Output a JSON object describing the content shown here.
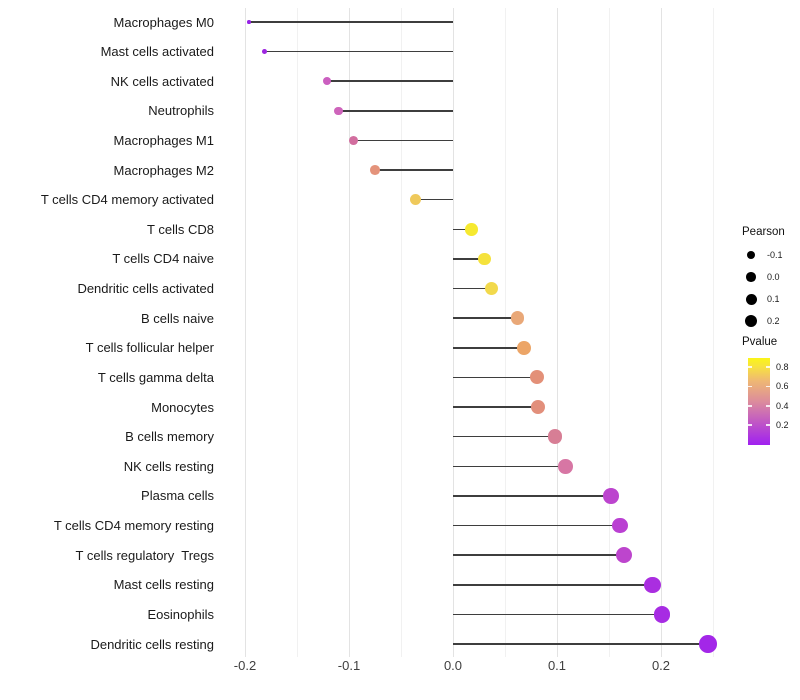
{
  "chart_data": {
    "type": "lollipop",
    "title": "",
    "xlabel": "",
    "ylabel": "",
    "x_ticks": [
      "-0.2",
      "-0.1",
      "0.0",
      "0.1",
      "0.2"
    ],
    "x_tick_values": [
      -0.2,
      -0.1,
      0.0,
      0.1,
      0.2
    ],
    "x_minor_tick_values": [
      -0.15,
      -0.05,
      0.05,
      0.15,
      0.25
    ],
    "xlim": [
      -0.22,
      0.2625
    ],
    "grid": "on",
    "stem_color": "#3e3e3e",
    "points": [
      {
        "label": "Macrophages M0",
        "pearson": -0.196,
        "pvalue": 0.06,
        "color": "#9623E6"
      },
      {
        "label": "Mast cells activated",
        "pearson": -0.181,
        "pvalue": 0.08,
        "color": "#9D26E0"
      },
      {
        "label": "NK cells activated",
        "pearson": -0.121,
        "pvalue": 0.33,
        "color": "#CB5FC0"
      },
      {
        "label": "Neutrophils",
        "pearson": -0.11,
        "pvalue": 0.35,
        "color": "#CE64BB"
      },
      {
        "label": "Macrophages M1",
        "pearson": -0.096,
        "pvalue": 0.42,
        "color": "#D26E9F"
      },
      {
        "label": "Macrophages M2",
        "pearson": -0.075,
        "pvalue": 0.57,
        "color": "#E4937B"
      },
      {
        "label": "T cells CD4 memory activated",
        "pearson": -0.036,
        "pvalue": 0.72,
        "color": "#EFC95B"
      },
      {
        "label": "T cells CD8",
        "pearson": 0.018,
        "pvalue": 0.87,
        "color": "#F6E930"
      },
      {
        "label": "T cells CD4 naive",
        "pearson": 0.03,
        "pvalue": 0.84,
        "color": "#F5E23C"
      },
      {
        "label": "Dendritic cells activated",
        "pearson": 0.037,
        "pvalue": 0.8,
        "color": "#F2D94C"
      },
      {
        "label": "B cells naive",
        "pearson": 0.062,
        "pvalue": 0.62,
        "color": "#E9A878"
      },
      {
        "label": "T cells follicular helper",
        "pearson": 0.068,
        "pvalue": 0.64,
        "color": "#ECA567"
      },
      {
        "label": "T cells gamma delta",
        "pearson": 0.081,
        "pvalue": 0.57,
        "color": "#E39078"
      },
      {
        "label": "Monocytes",
        "pearson": 0.082,
        "pvalue": 0.56,
        "color": "#E28F7B"
      },
      {
        "label": "B cells memory",
        "pearson": 0.098,
        "pvalue": 0.47,
        "color": "#D77E95"
      },
      {
        "label": "NK cells resting",
        "pearson": 0.108,
        "pvalue": 0.43,
        "color": "#D776A4"
      },
      {
        "label": "Plasma cells",
        "pearson": 0.152,
        "pvalue": 0.22,
        "color": "#BC44CE"
      },
      {
        "label": "T cells CD4 memory resting",
        "pearson": 0.161,
        "pvalue": 0.21,
        "color": "#BA40D2"
      },
      {
        "label": "T cells regulatory  Tregs",
        "pearson": 0.164,
        "pvalue": 0.22,
        "color": "#BD45CD"
      },
      {
        "label": "Mast cells resting",
        "pearson": 0.192,
        "pvalue": 0.12,
        "color": "#AA2EE0"
      },
      {
        "label": "Eosinophils",
        "pearson": 0.201,
        "pvalue": 0.11,
        "color": "#A72CE3"
      },
      {
        "label": "Dendritic cells resting",
        "pearson": 0.245,
        "pvalue": 0.07,
        "color": "#A327E8"
      }
    ],
    "legend_size": {
      "title": "Pearson",
      "dot_color": "#000000",
      "items": [
        {
          "label": "-0.1",
          "d": 8
        },
        {
          "label": "0.0",
          "d": 9.5
        },
        {
          "label": "0.1",
          "d": 11
        },
        {
          "label": "0.2",
          "d": 12.5
        }
      ]
    },
    "legend_color": {
      "title": "Pvalue",
      "range": [
        0.01,
        0.9
      ],
      "ticks": [
        {
          "label": "0.8",
          "value": 0.8
        },
        {
          "label": "0.6",
          "value": 0.6
        },
        {
          "label": "0.4",
          "value": 0.4
        },
        {
          "label": "0.2",
          "value": 0.2
        }
      ],
      "gradient_stops": [
        {
          "color": "#A020F0",
          "pos": 0
        },
        {
          "color": "#C057C5",
          "pos": 26
        },
        {
          "color": "#DC8C9C",
          "pos": 50
        },
        {
          "color": "#EFB873",
          "pos": 74
        },
        {
          "color": "#F7E23F",
          "pos": 90
        },
        {
          "color": "#FBF518",
          "pos": 100
        }
      ]
    }
  }
}
